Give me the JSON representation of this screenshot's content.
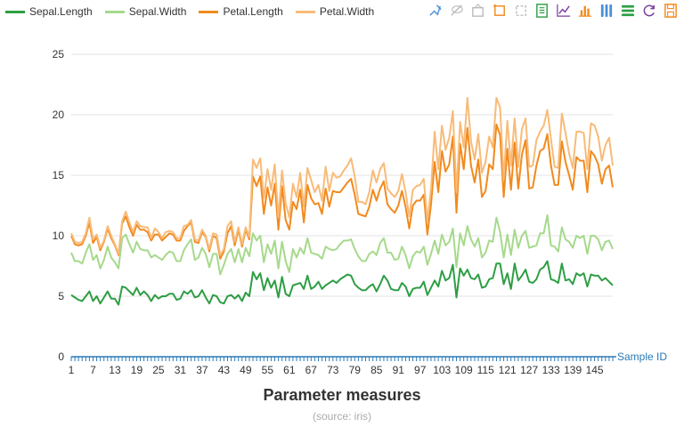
{
  "chart_data": {
    "type": "line",
    "title": "Parameter measures",
    "subtitle": "(source: iris)",
    "xlabel": "Sample ID",
    "ylabel": "",
    "ylim": [
      0,
      25
    ],
    "y_ticks": [
      0,
      5,
      10,
      15,
      20,
      25
    ],
    "x_tick_labels": [
      "1",
      "7",
      "13",
      "19",
      "25",
      "31",
      "37",
      "43",
      "49",
      "55",
      "61",
      "67",
      "73",
      "79",
      "85",
      "91",
      "97",
      "103",
      "109",
      "115",
      "121",
      "127",
      "133",
      "139",
      "145"
    ],
    "grid": true,
    "legend_position": "top-left",
    "x": [
      1,
      2,
      3,
      4,
      5,
      6,
      7,
      8,
      9,
      10,
      11,
      12,
      13,
      14,
      15,
      16,
      17,
      18,
      19,
      20,
      21,
      22,
      23,
      24,
      25,
      26,
      27,
      28,
      29,
      30,
      31,
      32,
      33,
      34,
      35,
      36,
      37,
      38,
      39,
      40,
      41,
      42,
      43,
      44,
      45,
      46,
      47,
      48,
      49,
      50,
      51,
      52,
      53,
      54,
      55,
      56,
      57,
      58,
      59,
      60,
      61,
      62,
      63,
      64,
      65,
      66,
      67,
      68,
      69,
      70,
      71,
      72,
      73,
      74,
      75,
      76,
      77,
      78,
      79,
      80,
      81,
      82,
      83,
      84,
      85,
      86,
      87,
      88,
      89,
      90,
      91,
      92,
      93,
      94,
      95,
      96,
      97,
      98,
      99,
      100,
      101,
      102,
      103,
      104,
      105,
      106,
      107,
      108,
      109,
      110,
      111,
      112,
      113,
      114,
      115,
      116,
      117,
      118,
      119,
      120,
      121,
      122,
      123,
      124,
      125,
      126,
      127,
      128,
      129,
      130,
      131,
      132,
      133,
      134,
      135,
      136,
      137,
      138,
      139,
      140,
      141,
      142,
      143,
      144,
      145,
      146,
      147,
      148,
      149,
      150
    ],
    "series": [
      {
        "name": "Sepal.Length",
        "color": "#2e9e44",
        "stacked": false,
        "values": [
          5.1,
          4.9,
          4.7,
          4.6,
          5.0,
          5.4,
          4.6,
          5.0,
          4.4,
          4.9,
          5.4,
          4.8,
          4.8,
          4.3,
          5.8,
          5.7,
          5.4,
          5.1,
          5.7,
          5.1,
          5.4,
          5.1,
          4.6,
          5.1,
          4.8,
          5.0,
          5.0,
          5.2,
          5.2,
          4.7,
          4.8,
          5.4,
          5.2,
          5.5,
          4.9,
          5.0,
          5.5,
          4.9,
          4.4,
          5.1,
          5.0,
          4.5,
          4.4,
          5.0,
          5.1,
          4.8,
          5.1,
          4.6,
          5.3,
          5.0,
          7.0,
          6.4,
          6.9,
          5.5,
          6.5,
          5.7,
          6.3,
          4.9,
          6.6,
          5.2,
          5.0,
          5.9,
          6.0,
          6.1,
          5.6,
          6.7,
          5.6,
          5.8,
          6.2,
          5.6,
          5.9,
          6.1,
          6.3,
          6.1,
          6.4,
          6.6,
          6.8,
          6.7,
          6.0,
          5.7,
          5.5,
          5.5,
          5.8,
          6.0,
          5.4,
          6.0,
          6.7,
          6.3,
          5.6,
          5.5,
          5.5,
          6.1,
          5.8,
          5.0,
          5.6,
          5.7,
          5.7,
          6.2,
          5.1,
          5.7,
          6.3,
          5.8,
          7.1,
          6.3,
          6.5,
          7.6,
          4.9,
          7.3,
          6.7,
          7.2,
          6.5,
          6.4,
          6.8,
          5.7,
          5.8,
          6.4,
          6.5,
          7.7,
          7.7,
          6.0,
          6.9,
          5.6,
          7.7,
          6.3,
          6.7,
          7.2,
          6.2,
          6.1,
          6.4,
          7.2,
          7.4,
          7.9,
          6.4,
          6.3,
          6.1,
          7.7,
          6.3,
          6.4,
          6.0,
          6.9,
          6.7,
          6.9,
          5.8,
          6.8,
          6.7,
          6.7,
          6.3,
          6.5,
          6.2,
          5.9
        ]
      },
      {
        "name": "Sepal.Width",
        "color": "#a6d98c",
        "stacked": true,
        "values": [
          3.5,
          3.0,
          3.2,
          3.1,
          3.6,
          3.9,
          3.4,
          3.4,
          2.9,
          3.1,
          3.7,
          3.4,
          3.0,
          3.0,
          4.0,
          4.4,
          3.9,
          3.5,
          3.8,
          3.8,
          3.4,
          3.7,
          3.6,
          3.3,
          3.4,
          3.0,
          3.4,
          3.5,
          3.4,
          3.2,
          3.1,
          3.4,
          4.1,
          4.2,
          3.1,
          3.2,
          3.5,
          3.6,
          3.0,
          3.4,
          3.5,
          2.3,
          3.2,
          3.5,
          3.8,
          3.0,
          3.8,
          3.2,
          3.7,
          3.3,
          3.2,
          3.2,
          3.1,
          2.3,
          2.8,
          2.8,
          3.3,
          2.4,
          2.9,
          2.7,
          2.0,
          3.0,
          2.2,
          2.9,
          2.9,
          3.1,
          3.0,
          2.7,
          2.2,
          2.5,
          3.2,
          2.8,
          2.5,
          2.8,
          2.9,
          3.0,
          2.8,
          3.0,
          2.9,
          2.6,
          2.4,
          2.4,
          2.7,
          2.7,
          3.0,
          3.4,
          3.1,
          2.3,
          3.0,
          2.5,
          2.6,
          3.0,
          2.6,
          2.3,
          2.7,
          3.0,
          2.9,
          2.9,
          2.5,
          2.8,
          3.3,
          2.7,
          3.0,
          2.9,
          3.0,
          3.0,
          2.5,
          2.9,
          2.5,
          3.6,
          3.2,
          2.7,
          3.0,
          2.5,
          2.8,
          3.2,
          3.0,
          3.8,
          2.6,
          2.2,
          3.2,
          2.8,
          2.8,
          2.7,
          3.3,
          3.2,
          2.8,
          3.0,
          2.8,
          3.0,
          2.8,
          3.8,
          2.8,
          2.8,
          2.6,
          3.0,
          3.4,
          3.1,
          3.0,
          3.1,
          3.1,
          3.1,
          2.7,
          3.2,
          3.3,
          3.0,
          2.5,
          3.0,
          3.4,
          3.0
        ]
      },
      {
        "name": "Petal.Length",
        "color": "#f28a1d",
        "stacked": false,
        "values": [
          10.0,
          9.3,
          9.2,
          9.3,
          10.0,
          11.1,
          9.4,
          9.9,
          8.8,
          9.5,
          10.6,
          9.8,
          9.2,
          8.4,
          11.0,
          11.6,
          10.7,
          10.0,
          10.9,
          10.5,
          10.5,
          10.3,
          9.6,
          10.1,
          10.1,
          9.6,
          9.9,
          10.2,
          10.1,
          9.6,
          9.6,
          10.4,
          10.8,
          11.1,
          9.5,
          9.4,
          10.3,
          9.9,
          8.7,
          10.0,
          9.8,
          8.1,
          8.7,
          10.2,
          10.8,
          9.2,
          10.5,
          9.1,
          10.5,
          9.7,
          14.9,
          14.1,
          14.9,
          11.8,
          14.0,
          12.5,
          14.3,
          10.5,
          14.1,
          11.3,
          10.5,
          12.8,
          12.2,
          13.8,
          11.1,
          14.2,
          13.1,
          12.6,
          12.7,
          11.8,
          13.9,
          12.4,
          13.7,
          13.6,
          13.6,
          14.0,
          14.4,
          14.7,
          13.4,
          11.8,
          11.7,
          11.6,
          12.4,
          13.8,
          12.9,
          13.9,
          14.5,
          12.6,
          12.2,
          11.9,
          12.5,
          13.7,
          12.4,
          10.6,
          12.5,
          12.9,
          12.9,
          13.4,
          10.1,
          12.6,
          16.1,
          13.6,
          17.0,
          15.3,
          15.9,
          18.2,
          11.9,
          17.6,
          15.5,
          18.9,
          15.8,
          14.4,
          16.3,
          13.2,
          13.7,
          15.9,
          15.5,
          19.2,
          18.3,
          13.2,
          17.2,
          13.8,
          17.7,
          13.9,
          16.7,
          17.9,
          13.9,
          14.0,
          15.8,
          17.0,
          17.2,
          18.4,
          15.8,
          14.2,
          14.2,
          17.8,
          16.1,
          15.0,
          13.8,
          16.5,
          16.2,
          16.2,
          13.6,
          17.0,
          16.6,
          15.9,
          14.3,
          15.5,
          15.8,
          14.0
        ]
      },
      {
        "name": "Petal.Width",
        "color": "#f8bb78",
        "stacked": true,
        "values": [
          0.2,
          0.2,
          0.2,
          0.2,
          0.2,
          0.4,
          0.3,
          0.2,
          0.2,
          0.1,
          0.2,
          0.2,
          0.1,
          0.1,
          0.2,
          0.4,
          0.4,
          0.3,
          0.3,
          0.3,
          0.2,
          0.4,
          0.2,
          0.5,
          0.2,
          0.2,
          0.4,
          0.2,
          0.2,
          0.2,
          0.2,
          0.4,
          0.1,
          0.2,
          0.2,
          0.2,
          0.2,
          0.1,
          0.2,
          0.2,
          0.3,
          0.3,
          0.2,
          0.6,
          0.4,
          0.3,
          0.2,
          0.2,
          0.2,
          0.2,
          1.4,
          1.5,
          1.5,
          1.3,
          1.5,
          1.3,
          1.6,
          1.0,
          1.3,
          1.4,
          1.0,
          1.5,
          1.0,
          1.4,
          1.3,
          1.4,
          1.5,
          1.0,
          1.5,
          1.1,
          1.8,
          1.3,
          1.5,
          1.2,
          1.3,
          1.4,
          1.4,
          1.7,
          1.5,
          1.0,
          1.1,
          1.0,
          1.2,
          1.6,
          1.5,
          1.6,
          1.5,
          1.3,
          1.3,
          1.3,
          1.2,
          1.4,
          1.2,
          1.0,
          1.3,
          1.2,
          1.3,
          1.3,
          1.1,
          1.3,
          2.5,
          1.9,
          2.1,
          1.8,
          2.2,
          2.1,
          1.7,
          1.8,
          1.8,
          2.5,
          2.0,
          1.9,
          2.1,
          2.0,
          2.4,
          2.3,
          1.8,
          2.2,
          2.3,
          1.5,
          2.3,
          2.0,
          2.0,
          1.8,
          2.1,
          1.8,
          1.8,
          1.8,
          2.1,
          1.6,
          1.9,
          2.0,
          2.2,
          1.5,
          1.4,
          2.3,
          2.4,
          1.8,
          1.8,
          2.1,
          2.4,
          2.3,
          1.9,
          2.3,
          2.5,
          2.3,
          1.9,
          2.0,
          2.3,
          1.8
        ]
      }
    ]
  },
  "toolbox": [
    {
      "name": "brush-polygon-icon",
      "color": "#4a90d9"
    },
    {
      "name": "brush-lasso-icon",
      "color": "#bbbbbb"
    },
    {
      "name": "brush-clear-icon",
      "color": "#bbbbbb"
    },
    {
      "name": "data-zoom-icon",
      "color": "#f28a1d"
    },
    {
      "name": "zoom-reset-icon",
      "color": "#bbbbbb"
    },
    {
      "name": "data-view-icon",
      "color": "#2e9e44"
    },
    {
      "name": "line-chart-icon",
      "color": "#7a3fa0"
    },
    {
      "name": "bar-chart-icon",
      "color": "#f28a1d"
    },
    {
      "name": "stack-icon",
      "color": "#4a90d9"
    },
    {
      "name": "tiled-icon",
      "color": "#2e9e44"
    },
    {
      "name": "restore-icon",
      "color": "#7a3fa0"
    },
    {
      "name": "save-image-icon",
      "color": "#f28a1d"
    }
  ]
}
